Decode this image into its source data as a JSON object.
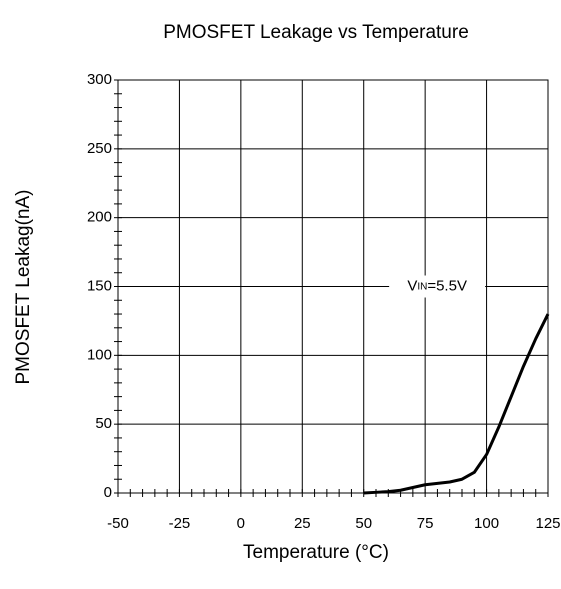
{
  "chart_data": {
    "type": "line",
    "title": "PMOSFET Leakage vs Temperature",
    "x_label": "Temperature (°C)",
    "y_label": "PMOSFET Leakag(nA)",
    "annotation": [
      "V",
      "IN",
      "=5.5V"
    ],
    "x": [
      50,
      55,
      60,
      65,
      70,
      75,
      80,
      85,
      90,
      95,
      100,
      105,
      110,
      115,
      120,
      125
    ],
    "series": [
      {
        "name": "VIN=5.5V",
        "color": "#000000",
        "values": [
          0,
          0.5,
          1,
          2,
          4,
          6,
          7,
          8,
          10,
          15,
          28,
          48,
          70,
          92,
          112,
          130
        ]
      }
    ],
    "xlim": [
      -50,
      125
    ],
    "xticks": [
      -50,
      -25,
      0,
      25,
      50,
      75,
      100,
      125
    ],
    "ylim": [
      0,
      300
    ],
    "yticks": [
      0,
      50,
      100,
      150,
      200,
      250,
      300
    ],
    "grid": true
  }
}
